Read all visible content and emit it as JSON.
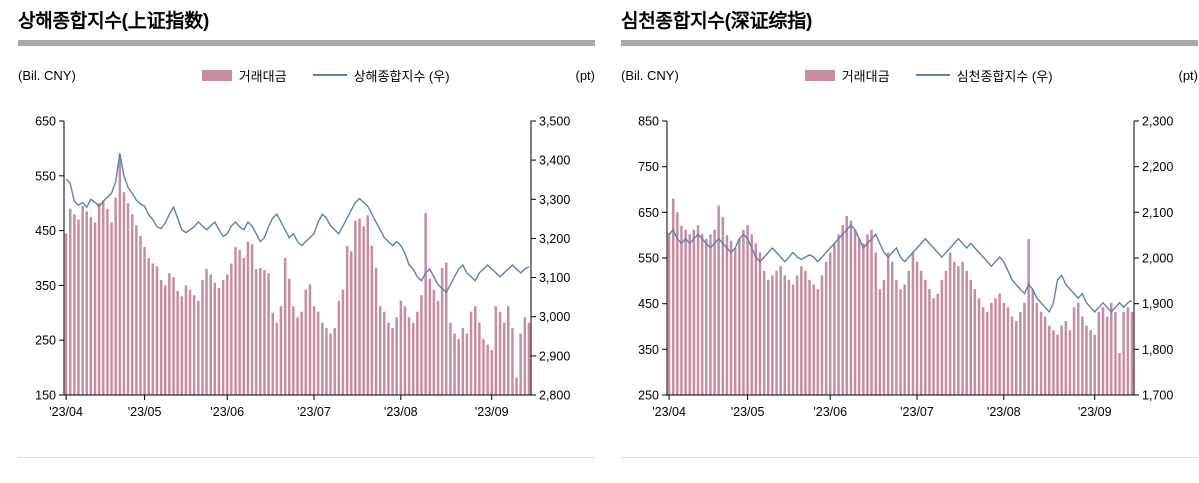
{
  "page": {
    "background": "#ffffff"
  },
  "chart_data": [
    {
      "type": "combo",
      "title": "상해종합지수(上证指数)",
      "left_unit": "(Bil. CNY)",
      "right_unit": "(pt)",
      "colors": {
        "bar": "#c48da2",
        "line": "#5b83b0",
        "title_bar": "#a8a8a8"
      },
      "left_axis": {
        "min": 150,
        "max": 650,
        "step": 100
      },
      "right_axis": {
        "min": 2800,
        "max": 3500,
        "step": 100
      },
      "x_tick_labels": [
        "'23/04",
        "'23/05",
        "'23/06",
        "'23/07",
        "'23/08",
        "'23/09"
      ],
      "x_tick_indices": [
        0,
        19,
        39,
        60,
        81,
        103
      ],
      "series": [
        {
          "name": "거래대금",
          "type": "bar",
          "axis": "left",
          "values": [
            445,
            490,
            480,
            470,
            495,
            485,
            475,
            465,
            500,
            505,
            490,
            465,
            510,
            585,
            520,
            500,
            480,
            460,
            440,
            420,
            400,
            390,
            385,
            360,
            350,
            372,
            365,
            340,
            330,
            350,
            342,
            332,
            322,
            360,
            380,
            370,
            355,
            345,
            360,
            370,
            390,
            420,
            415,
            400,
            430,
            425,
            380,
            382,
            378,
            372,
            300,
            282,
            312,
            400,
            362,
            312,
            292,
            302,
            342,
            352,
            312,
            302,
            282,
            272,
            262,
            272,
            322,
            342,
            422,
            412,
            468,
            472,
            458,
            478,
            422,
            382,
            312,
            302,
            282,
            272,
            292,
            322,
            312,
            292,
            282,
            302,
            332,
            482,
            362,
            342,
            322,
            382,
            392,
            282,
            262,
            252,
            272,
            262,
            302,
            312,
            282,
            252,
            242,
            232,
            312,
            302,
            282,
            312,
            272,
            182,
            262,
            292,
            282
          ]
        },
        {
          "name": "상해종합지수 (우)",
          "type": "line",
          "axis": "right",
          "values": [
            3352,
            3340,
            3295,
            3285,
            3292,
            3280,
            3300,
            3292,
            3282,
            3295,
            3305,
            3315,
            3345,
            3418,
            3360,
            3330,
            3315,
            3298,
            3288,
            3282,
            3260,
            3248,
            3230,
            3225,
            3240,
            3262,
            3280,
            3252,
            3222,
            3215,
            3222,
            3230,
            3242,
            3232,
            3222,
            3232,
            3242,
            3222,
            3205,
            3212,
            3232,
            3242,
            3230,
            3222,
            3242,
            3232,
            3212,
            3192,
            3202,
            3230,
            3252,
            3262,
            3242,
            3222,
            3202,
            3212,
            3192,
            3182,
            3192,
            3202,
            3212,
            3242,
            3262,
            3252,
            3232,
            3222,
            3212,
            3232,
            3252,
            3272,
            3292,
            3302,
            3292,
            3282,
            3262,
            3242,
            3222,
            3202,
            3192,
            3182,
            3192,
            3182,
            3162,
            3132,
            3122,
            3102,
            3092,
            3112,
            3122,
            3102,
            3082,
            3072,
            3062,
            3082,
            3102,
            3122,
            3132,
            3112,
            3102,
            3092,
            3112,
            3122,
            3132,
            3122,
            3112,
            3102,
            3112,
            3122,
            3132,
            3122,
            3112,
            3122,
            3128
          ]
        }
      ]
    },
    {
      "type": "combo",
      "title": "심천종합지수(深证综指)",
      "left_unit": "(Bil. CNY)",
      "right_unit": "(pt)",
      "colors": {
        "bar": "#c48da2",
        "line": "#5b83b0",
        "title_bar": "#a8a8a8"
      },
      "left_axis": {
        "min": 250,
        "max": 850,
        "step": 100
      },
      "right_axis": {
        "min": 1700,
        "max": 2300,
        "step": 100
      },
      "x_tick_labels": [
        "'23/04",
        "'23/05",
        "'23/06",
        "'23/07",
        "'23/08",
        "'23/09"
      ],
      "x_tick_indices": [
        0,
        19,
        39,
        60,
        81,
        103
      ],
      "series": [
        {
          "name": "거래대금",
          "type": "bar",
          "axis": "left",
          "values": [
            605,
            680,
            650,
            620,
            612,
            602,
            612,
            622,
            602,
            592,
            602,
            612,
            665,
            640,
            600,
            588,
            572,
            592,
            612,
            622,
            602,
            582,
            562,
            522,
            502,
            512,
            522,
            532,
            512,
            502,
            492,
            512,
            532,
            522,
            502,
            492,
            482,
            512,
            542,
            562,
            582,
            602,
            622,
            642,
            632,
            612,
            592,
            582,
            602,
            612,
            562,
            482,
            502,
            562,
            542,
            502,
            482,
            492,
            522,
            562,
            542,
            522,
            502,
            482,
            462,
            472,
            502,
            522,
            562,
            542,
            532,
            542,
            522,
            502,
            482,
            462,
            442,
            432,
            452,
            462,
            472,
            452,
            442,
            422,
            412,
            432,
            452,
            592,
            482,
            452,
            432,
            422,
            402,
            392,
            382,
            402,
            412,
            392,
            442,
            452,
            422,
            402,
            392,
            382,
            432,
            442,
            422,
            452,
            432,
            342,
            432,
            442,
            432
          ]
        },
        {
          "name": "심천종합지수 (우)",
          "type": "line",
          "axis": "right",
          "values": [
            2052,
            2062,
            2042,
            2032,
            2042,
            2032,
            2042,
            2052,
            2042,
            2032,
            2022,
            2032,
            2042,
            2032,
            2022,
            2012,
            2022,
            2042,
            2052,
            2042,
            2022,
            2002,
            1992,
            2002,
            2012,
            2022,
            2012,
            2002,
            1992,
            2002,
            2012,
            2002,
            1997,
            2002,
            2007,
            2002,
            1992,
            2002,
            2012,
            2022,
            2032,
            2042,
            2052,
            2062,
            2072,
            2062,
            2042,
            2022,
            2032,
            2042,
            2052,
            2032,
            2012,
            2002,
            2012,
            2022,
            2002,
            1992,
            2002,
            2012,
            2022,
            2032,
            2042,
            2032,
            2022,
            2012,
            2002,
            2012,
            2022,
            2032,
            2042,
            2032,
            2022,
            2032,
            2022,
            2012,
            2002,
            1992,
            1982,
            1992,
            2002,
            1992,
            1972,
            1952,
            1942,
            1932,
            1922,
            1942,
            1932,
            1912,
            1902,
            1892,
            1882,
            1902,
            1952,
            1962,
            1942,
            1932,
            1922,
            1912,
            1922,
            1902,
            1892,
            1882,
            1892,
            1902,
            1892,
            1882,
            1892,
            1902,
            1892,
            1902,
            1907
          ]
        }
      ]
    }
  ]
}
